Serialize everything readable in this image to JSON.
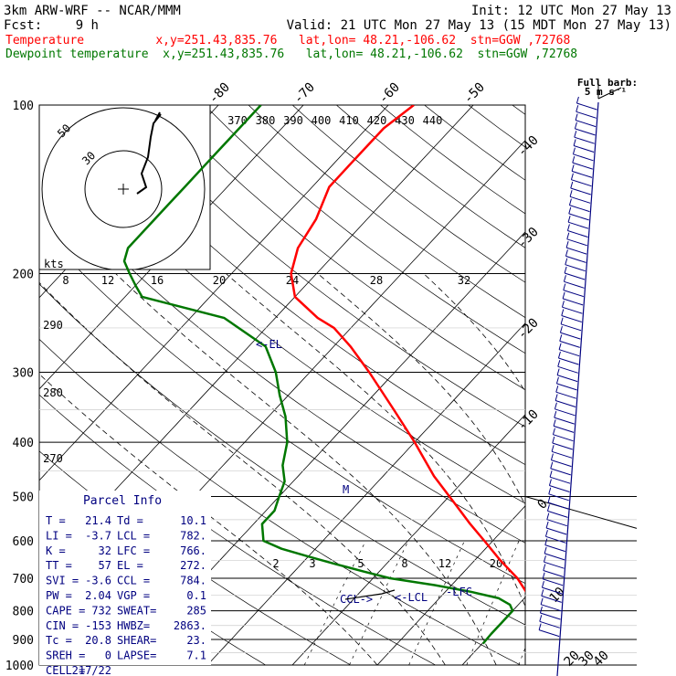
{
  "header": {
    "model": "3km ARW-WRF -- NCAR/MMM",
    "init": "Init: 12 UTC Mon 27 May 13",
    "fcst_label": "Fcst:",
    "fcst_hours": "9 h",
    "valid": "Valid: 21 UTC Mon 27 May 13 (15 MDT Mon 27 May 13)",
    "temp_line": "Temperature          x,y=251.43,835.76   lat,lon= 48.21,-106.62  stn=GGW ,72768",
    "dew_line": "Dewpoint temperature  x,y=251.43,835.76   lat,lon= 48.21,-106.62  stn=GGW ,72768"
  },
  "colors": {
    "temperature": "#ff0000",
    "dewpoint": "#007700",
    "navy": "#000080",
    "black": "#000000"
  },
  "chart_data": {
    "type": "line",
    "subtype": "skew-T log-P",
    "pressure_ticks": [
      "100",
      "200",
      "300",
      "400",
      "500",
      "600",
      "700",
      "800",
      "900",
      "1000"
    ],
    "pressure_levels": [
      100,
      200,
      300,
      400,
      500,
      600,
      700,
      800,
      900,
      1000
    ],
    "skewed_temp_labels": [
      "-80",
      "-70",
      "-60",
      "-50",
      "-40",
      "-30",
      "-20",
      "-10",
      "0",
      "10",
      "20",
      "30",
      "40"
    ],
    "skewed_temp_values": [
      -80,
      -70,
      -60,
      -50,
      -40,
      -30,
      -20,
      -10,
      0,
      10,
      20,
      30,
      40
    ],
    "theta_labels": [
      "370",
      "380",
      "390",
      "400",
      "410",
      "420",
      "430",
      "440",
      "290",
      "280",
      "270"
    ],
    "mixing_ratio_labels": [
      "2",
      "3",
      "5",
      "8",
      "12",
      "20"
    ],
    "barb_title": "Full barb:",
    "barb_unit": "5 m s⁻¹",
    "series": [
      {
        "name": "Temperature",
        "p": [
          916,
          890,
          860,
          800,
          740,
          700,
          650,
          600,
          560,
          510,
          460,
          400,
          350,
          300,
          270,
          250,
          240,
          220,
          200,
          180,
          160,
          140,
          130,
          120,
          110,
          100
        ],
        "t": [
          21.4,
          20,
          17.5,
          13,
          9.5,
          7,
          3,
          -1,
          -4.5,
          -9,
          -14,
          -20,
          -26,
          -33,
          -38,
          -42,
          -45,
          -50,
          -53,
          -55,
          -56,
          -58,
          -58,
          -58,
          -58,
          -57
        ]
      },
      {
        "name": "Dewpoint temperature",
        "p": [
          916,
          880,
          840,
          800,
          780,
          760,
          740,
          720,
          700,
          680,
          660,
          640,
          620,
          600,
          560,
          530,
          500,
          470,
          440,
          400,
          360,
          330,
          300,
          270,
          240,
          220,
          210,
          200,
          190,
          180,
          170,
          160,
          150,
          140,
          130,
          120,
          110,
          100
        ],
        "t": [
          10.1,
          10,
          10,
          10,
          9,
          7,
          3,
          -2,
          -8,
          -12,
          -16,
          -20,
          -24,
          -27,
          -29,
          -29,
          -30,
          -31,
          -33,
          -35,
          -38,
          -41,
          -44,
          -48,
          -56,
          -68,
          -70,
          -72,
          -74,
          -75,
          -75,
          -75,
          -75,
          -75,
          -75,
          -75,
          -75,
          -75
        ]
      }
    ],
    "level_labels": [
      "<-EL",
      "M",
      "CCL->",
      "<-LCL",
      "-LFC"
    ],
    "hodograph": {
      "rings": [
        "30",
        "50"
      ],
      "speed_unit": "kts",
      "speed_ticks": [
        "8",
        "12",
        "16",
        "20",
        "24",
        "28",
        "32"
      ]
    }
  },
  "parcel_info": {
    "title": "Parcel Info",
    "rows": [
      [
        "T  =",
        "21.4",
        "Td =",
        "10.1"
      ],
      [
        "LI =",
        "-3.7",
        "LCL =",
        "782."
      ],
      [
        "K  =",
        "32",
        "LFC =",
        "766."
      ],
      [
        "TT =",
        "57",
        "EL =",
        "272."
      ],
      [
        "SVI =",
        "-3.6",
        "CCL =",
        "784."
      ],
      [
        "PW =",
        "2.04",
        "VGP =",
        "0.1"
      ],
      [
        "CAPE =",
        "732",
        "SWEAT=",
        "285"
      ],
      [
        "CIN =",
        "-153",
        "HWBZ=",
        "2863."
      ],
      [
        "Tc =",
        "20.8",
        "SHEAR=",
        "23."
      ],
      [
        "SREH =",
        "0",
        "LAPSE=",
        "7.1"
      ],
      [
        "CELL =",
        "217/22",
        "",
        ""
      ]
    ]
  }
}
